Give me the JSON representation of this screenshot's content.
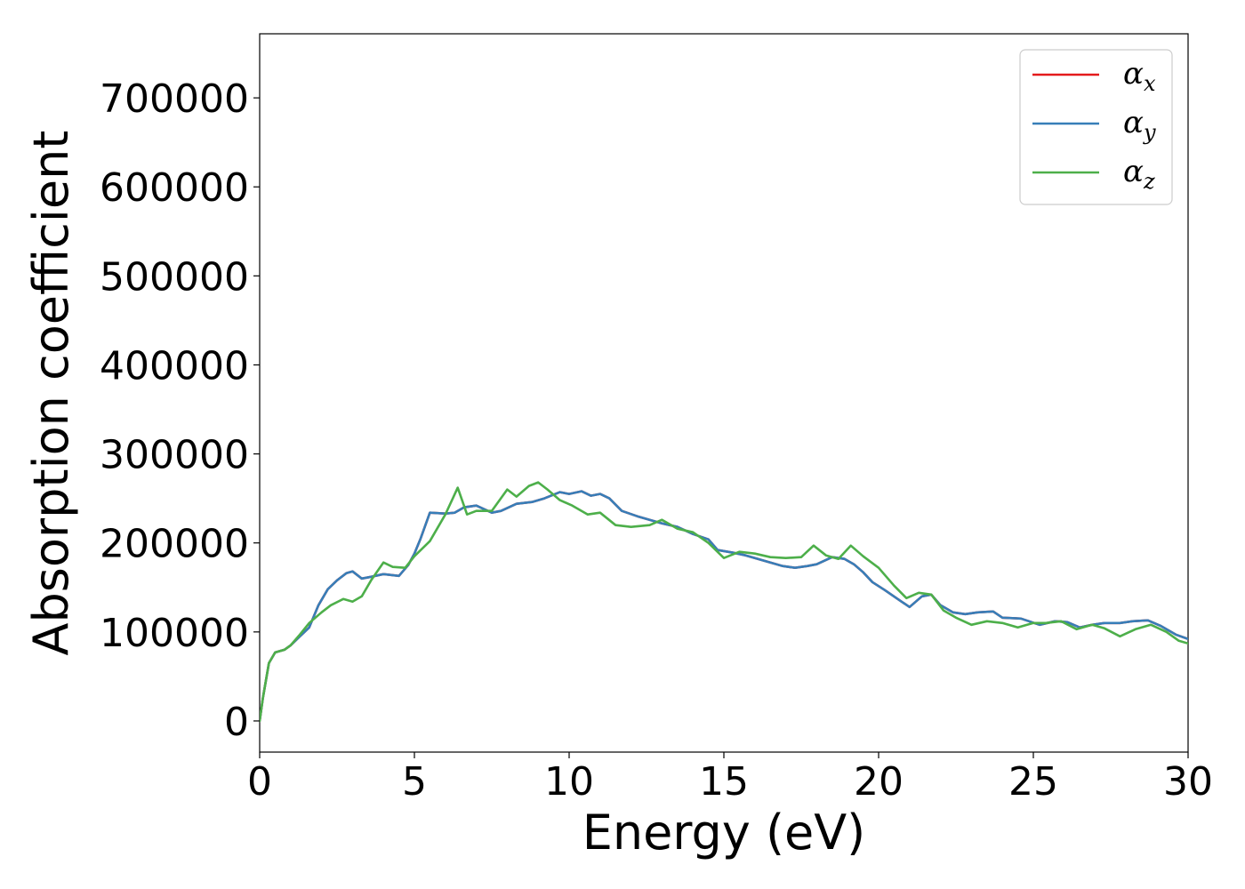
{
  "chart_data": {
    "type": "line",
    "title": "",
    "xlabel": "Energy (eV)",
    "ylabel": "Absorption coefficient",
    "xlim": [
      0,
      30
    ],
    "ylim": [
      -35000,
      772000
    ],
    "xticks": [
      "0",
      "5",
      "10",
      "15",
      "20",
      "25",
      "30"
    ],
    "xtick_values": [
      0,
      5,
      10,
      15,
      20,
      25,
      30
    ],
    "yticks": [
      "0",
      "100000",
      "200000",
      "300000",
      "400000",
      "500000",
      "600000",
      "700000"
    ],
    "ytick_values": [
      0,
      100000,
      200000,
      300000,
      400000,
      500000,
      600000,
      700000
    ],
    "grid": false,
    "legend_position": "top-right",
    "series": [
      {
        "name": "x",
        "legend_base": "α",
        "legend_sub": "x",
        "color": "#e41a1c",
        "x": [
          0,
          0.1,
          0.3,
          0.5,
          0.8,
          1.0,
          1.3,
          1.6,
          1.9,
          2.2,
          2.5,
          2.8,
          3.0,
          3.3,
          3.6,
          4.0,
          4.5,
          4.8,
          5.0,
          5.2,
          5.5,
          6.0,
          6.3,
          6.6,
          7.0,
          7.5,
          7.8,
          8.3,
          8.8,
          9.2,
          9.7,
          10.0,
          10.4,
          10.7,
          11.0,
          11.3,
          11.7,
          12.2,
          12.6,
          13.0,
          13.5,
          14.0,
          14.5,
          14.8,
          15.3,
          15.7,
          16.1,
          16.5,
          16.9,
          17.3,
          17.7,
          18.0,
          18.5,
          18.9,
          19.2,
          19.5,
          19.8,
          20.2,
          20.7,
          21.0,
          21.4,
          21.7,
          22.0,
          22.4,
          22.8,
          23.2,
          23.7,
          24.0,
          24.6,
          25.2,
          25.7,
          26.1,
          26.5,
          26.9,
          27.3,
          27.8,
          28.2,
          28.7,
          29.1,
          29.6,
          30.0
        ],
        "y": [
          0,
          25000,
          65000,
          77000,
          80000,
          85000,
          95000,
          105000,
          130000,
          148000,
          158000,
          166000,
          168000,
          160000,
          162000,
          165000,
          163000,
          175000,
          188000,
          205000,
          234000,
          233000,
          234000,
          240000,
          242000,
          234000,
          236000,
          244000,
          246000,
          250000,
          257000,
          255000,
          258000,
          253000,
          255000,
          250000,
          236000,
          230000,
          226000,
          222000,
          218000,
          210000,
          204000,
          192000,
          189000,
          186000,
          182000,
          178000,
          174000,
          172000,
          174000,
          176000,
          184000,
          182000,
          176000,
          167000,
          156000,
          147000,
          135000,
          128000,
          140000,
          142000,
          130000,
          122000,
          120000,
          122000,
          123000,
          116000,
          115000,
          108000,
          112000,
          111000,
          105000,
          108000,
          110000,
          110000,
          112000,
          113000,
          107000,
          97000,
          92000
        ]
      },
      {
        "name": "y",
        "legend_base": "α",
        "legend_sub": "y",
        "color": "#377eb8",
        "x": [
          0,
          0.1,
          0.3,
          0.5,
          0.8,
          1.0,
          1.3,
          1.6,
          1.9,
          2.2,
          2.5,
          2.8,
          3.0,
          3.3,
          3.6,
          4.0,
          4.5,
          4.8,
          5.0,
          5.2,
          5.5,
          6.0,
          6.3,
          6.6,
          7.0,
          7.5,
          7.8,
          8.3,
          8.8,
          9.2,
          9.7,
          10.0,
          10.4,
          10.7,
          11.0,
          11.3,
          11.7,
          12.2,
          12.6,
          13.0,
          13.5,
          14.0,
          14.5,
          14.8,
          15.3,
          15.7,
          16.1,
          16.5,
          16.9,
          17.3,
          17.7,
          18.0,
          18.5,
          18.9,
          19.2,
          19.5,
          19.8,
          20.2,
          20.7,
          21.0,
          21.4,
          21.7,
          22.0,
          22.4,
          22.8,
          23.2,
          23.7,
          24.0,
          24.6,
          25.2,
          25.7,
          26.1,
          26.5,
          26.9,
          27.3,
          27.8,
          28.2,
          28.7,
          29.1,
          29.6,
          30.0
        ],
        "y": [
          0,
          25000,
          65000,
          77000,
          80000,
          85000,
          95000,
          105000,
          130000,
          148000,
          158000,
          166000,
          168000,
          160000,
          162000,
          165000,
          163000,
          175000,
          188000,
          205000,
          234000,
          233000,
          234000,
          240000,
          242000,
          234000,
          236000,
          244000,
          246000,
          250000,
          257000,
          255000,
          258000,
          253000,
          255000,
          250000,
          236000,
          230000,
          226000,
          222000,
          218000,
          210000,
          204000,
          192000,
          189000,
          186000,
          182000,
          178000,
          174000,
          172000,
          174000,
          176000,
          184000,
          182000,
          176000,
          167000,
          156000,
          147000,
          135000,
          128000,
          140000,
          142000,
          130000,
          122000,
          120000,
          122000,
          123000,
          116000,
          115000,
          108000,
          112000,
          111000,
          105000,
          108000,
          110000,
          110000,
          112000,
          113000,
          107000,
          97000,
          92000
        ]
      },
      {
        "name": "z",
        "legend_base": "α",
        "legend_sub": "z",
        "color": "#4daf4a",
        "x": [
          0,
          0.1,
          0.3,
          0.5,
          0.8,
          1.0,
          1.3,
          1.6,
          2.0,
          2.3,
          2.7,
          3.0,
          3.3,
          3.6,
          4.0,
          4.3,
          4.7,
          5.0,
          5.5,
          6.0,
          6.4,
          6.7,
          7.0,
          7.5,
          8.0,
          8.3,
          8.7,
          9.0,
          9.3,
          9.7,
          10.1,
          10.6,
          11.0,
          11.5,
          12.0,
          12.6,
          13.0,
          13.5,
          14.0,
          14.5,
          15.0,
          15.5,
          16.0,
          16.5,
          17.0,
          17.5,
          17.9,
          18.3,
          18.7,
          19.1,
          19.5,
          20.0,
          20.5,
          20.9,
          21.3,
          21.7,
          22.1,
          22.5,
          23.0,
          23.5,
          24.0,
          24.5,
          25.0,
          25.4,
          25.9,
          26.4,
          26.9,
          27.3,
          27.8,
          28.3,
          28.8,
          29.3,
          29.7,
          30.0
        ],
        "y": [
          0,
          25000,
          65000,
          77000,
          80000,
          85000,
          97000,
          110000,
          122000,
          130000,
          137000,
          134000,
          140000,
          158000,
          178000,
          173000,
          172000,
          185000,
          202000,
          232000,
          262000,
          232000,
          236000,
          236000,
          260000,
          252000,
          264000,
          268000,
          260000,
          248000,
          242000,
          232000,
          234000,
          220000,
          218000,
          220000,
          226000,
          216000,
          212000,
          200000,
          183000,
          190000,
          188000,
          184000,
          183000,
          184000,
          197000,
          186000,
          182000,
          197000,
          185000,
          172000,
          152000,
          138000,
          144000,
          142000,
          124000,
          116000,
          108000,
          112000,
          110000,
          105000,
          110000,
          110000,
          112000,
          103000,
          108000,
          104000,
          95000,
          103000,
          108000,
          100000,
          90000,
          87000
        ]
      }
    ]
  }
}
